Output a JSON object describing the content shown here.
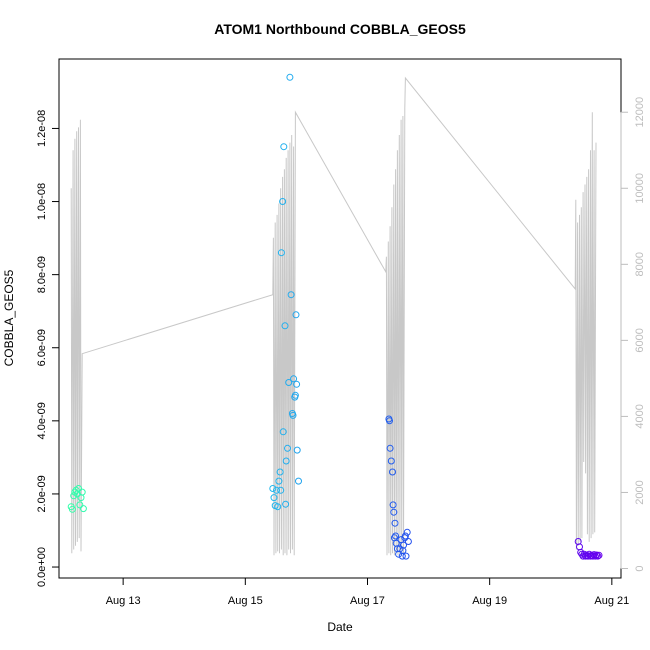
{
  "chart_data": {
    "type": "scatter",
    "title": "ATOM1 Northbound COBBLA_GEOS5",
    "xlabel": "Date",
    "ylabel": "COBBLA_GEOS5",
    "x_ticks": [
      "Aug 13",
      "Aug 15",
      "Aug 17",
      "Aug 19",
      "Aug 21"
    ],
    "x_tick_days": [
      13,
      15,
      17,
      19,
      21
    ],
    "xlim_days": [
      11.95,
      21.15
    ],
    "y_ticks": [
      "0.0e+00",
      "2.0e-09",
      "4.0e-09",
      "6.0e-09",
      "8.0e-09",
      "1.0e-08",
      "1.2e-08"
    ],
    "y_tick_values": [
      0,
      2e-09,
      4e-09,
      6e-09,
      8e-09,
      1e-08,
      1.2e-08
    ],
    "ylim": [
      -3e-10,
      1.39e-08
    ],
    "y2_ticks": [
      "0",
      "2000",
      "4000",
      "6000",
      "8000",
      "10000",
      "12000"
    ],
    "y2_tick_values": [
      0,
      2000,
      4000,
      6000,
      8000,
      10000,
      12000
    ],
    "y2lim": [
      -250,
      13400
    ],
    "secondary_line_color": "#c8c8c8",
    "point_color_scale": [
      "#33ffaa",
      "#22ccee",
      "#2244ee",
      "#6600ee"
    ],
    "points": [
      {
        "x": 12.15,
        "y": 1.65e-09
      },
      {
        "x": 12.17,
        "y": 1.58e-09
      },
      {
        "x": 12.19,
        "y": 1.95e-09
      },
      {
        "x": 12.21,
        "y": 2.05e-09
      },
      {
        "x": 12.23,
        "y": 2.1e-09
      },
      {
        "x": 12.25,
        "y": 2e-09
      },
      {
        "x": 12.27,
        "y": 2.15e-09
      },
      {
        "x": 12.29,
        "y": 1.7e-09
      },
      {
        "x": 12.31,
        "y": 1.9e-09
      },
      {
        "x": 12.33,
        "y": 2.05e-09
      },
      {
        "x": 12.35,
        "y": 1.6e-09
      },
      {
        "x": 15.45,
        "y": 2.15e-09
      },
      {
        "x": 15.47,
        "y": 1.9e-09
      },
      {
        "x": 15.49,
        "y": 1.68e-09
      },
      {
        "x": 15.51,
        "y": 2.1e-09
      },
      {
        "x": 15.53,
        "y": 1.65e-09
      },
      {
        "x": 15.55,
        "y": 2.35e-09
      },
      {
        "x": 15.57,
        "y": 2.6e-09
      },
      {
        "x": 15.59,
        "y": 8.6e-09
      },
      {
        "x": 15.61,
        "y": 1e-08
      },
      {
        "x": 15.63,
        "y": 1.15e-08
      },
      {
        "x": 15.65,
        "y": 6.6e-09
      },
      {
        "x": 15.67,
        "y": 2.9e-09
      },
      {
        "x": 15.69,
        "y": 3.25e-09
      },
      {
        "x": 15.71,
        "y": 5.05e-09
      },
      {
        "x": 15.73,
        "y": 1.34e-08
      },
      {
        "x": 15.75,
        "y": 7.45e-09
      },
      {
        "x": 15.77,
        "y": 4.2e-09
      },
      {
        "x": 15.79,
        "y": 5.15e-09
      },
      {
        "x": 15.81,
        "y": 4.65e-09
      },
      {
        "x": 15.83,
        "y": 6.9e-09
      },
      {
        "x": 15.85,
        "y": 3.2e-09
      },
      {
        "x": 15.87,
        "y": 2.35e-09
      },
      {
        "x": 15.62,
        "y": 3.7e-09
      },
      {
        "x": 15.66,
        "y": 1.72e-09
      },
      {
        "x": 15.78,
        "y": 4.15e-09
      },
      {
        "x": 15.82,
        "y": 4.7e-09
      },
      {
        "x": 15.84,
        "y": 5e-09
      },
      {
        "x": 15.58,
        "y": 2.1e-09
      },
      {
        "x": 17.35,
        "y": 4.05e-09
      },
      {
        "x": 17.37,
        "y": 3.25e-09
      },
      {
        "x": 17.39,
        "y": 2.9e-09
      },
      {
        "x": 17.41,
        "y": 2.6e-09
      },
      {
        "x": 17.42,
        "y": 1.7e-09
      },
      {
        "x": 17.43,
        "y": 1.5e-09
      },
      {
        "x": 17.45,
        "y": 1.2e-09
      },
      {
        "x": 17.46,
        "y": 8.5e-10
      },
      {
        "x": 17.47,
        "y": 6.5e-10
      },
      {
        "x": 17.49,
        "y": 5e-10
      },
      {
        "x": 17.51,
        "y": 3.5e-10
      },
      {
        "x": 17.53,
        "y": 5e-10
      },
      {
        "x": 17.55,
        "y": 7.5e-10
      },
      {
        "x": 17.57,
        "y": 3e-10
      },
      {
        "x": 17.59,
        "y": 6e-10
      },
      {
        "x": 17.61,
        "y": 8e-10
      },
      {
        "x": 17.63,
        "y": 3e-10
      },
      {
        "x": 17.65,
        "y": 9.5e-10
      },
      {
        "x": 17.67,
        "y": 7e-10
      },
      {
        "x": 17.44,
        "y": 8e-10
      },
      {
        "x": 17.36,
        "y": 4e-09
      },
      {
        "x": 17.58,
        "y": 4.5e-10
      },
      {
        "x": 17.62,
        "y": 8.5e-10
      },
      {
        "x": 20.45,
        "y": 7e-10
      },
      {
        "x": 20.47,
        "y": 5.5e-10
      },
      {
        "x": 20.49,
        "y": 4e-10
      },
      {
        "x": 20.51,
        "y": 3.5e-10
      },
      {
        "x": 20.53,
        "y": 3e-10
      },
      {
        "x": 20.55,
        "y": 3.5e-10
      },
      {
        "x": 20.57,
        "y": 3e-10
      },
      {
        "x": 20.59,
        "y": 3.2e-10
      },
      {
        "x": 20.61,
        "y": 3e-10
      },
      {
        "x": 20.63,
        "y": 3.5e-10
      },
      {
        "x": 20.65,
        "y": 3e-10
      },
      {
        "x": 20.67,
        "y": 3.2e-10
      },
      {
        "x": 20.69,
        "y": 3e-10
      },
      {
        "x": 20.71,
        "y": 3.4e-10
      },
      {
        "x": 20.73,
        "y": 3e-10
      },
      {
        "x": 20.75,
        "y": 3.3e-10
      },
      {
        "x": 20.77,
        "y": 3e-10
      },
      {
        "x": 20.79,
        "y": 3.2e-10
      }
    ],
    "secondary_line": [
      [
        12.15,
        10000
      ],
      [
        12.16,
        400
      ],
      [
        12.18,
        11000
      ],
      [
        12.19,
        500
      ],
      [
        12.21,
        11300
      ],
      [
        12.22,
        600
      ],
      [
        12.24,
        11500
      ],
      [
        12.25,
        700
      ],
      [
        12.27,
        11600
      ],
      [
        12.28,
        800
      ],
      [
        12.3,
        11800
      ],
      [
        12.31,
        450
      ],
      [
        12.33,
        5650
      ],
      [
        15.45,
        7200
      ],
      [
        15.46,
        8700
      ],
      [
        15.47,
        350
      ],
      [
        15.49,
        9100
      ],
      [
        15.5,
        400
      ],
      [
        15.52,
        9300
      ],
      [
        15.53,
        450
      ],
      [
        15.55,
        9600
      ],
      [
        15.56,
        400
      ],
      [
        15.58,
        10000
      ],
      [
        15.59,
        500
      ],
      [
        15.61,
        10300
      ],
      [
        15.62,
        350
      ],
      [
        15.64,
        10500
      ],
      [
        15.65,
        400
      ],
      [
        15.67,
        10800
      ],
      [
        15.68,
        350
      ],
      [
        15.7,
        11000
      ],
      [
        15.71,
        500
      ],
      [
        15.73,
        11200
      ],
      [
        15.74,
        400
      ],
      [
        15.76,
        11400
      ],
      [
        15.77,
        500
      ],
      [
        15.79,
        11100
      ],
      [
        15.8,
        350
      ],
      [
        15.82,
        12000
      ],
      [
        17.3,
        7800
      ],
      [
        17.31,
        8200
      ],
      [
        17.32,
        350
      ],
      [
        17.34,
        8600
      ],
      [
        17.35,
        400
      ],
      [
        17.37,
        9000
      ],
      [
        17.38,
        350
      ],
      [
        17.4,
        9500
      ],
      [
        17.41,
        400
      ],
      [
        17.43,
        10100
      ],
      [
        17.44,
        350
      ],
      [
        17.46,
        10500
      ],
      [
        17.47,
        400
      ],
      [
        17.49,
        11000
      ],
      [
        17.5,
        350
      ],
      [
        17.52,
        11400
      ],
      [
        17.53,
        350
      ],
      [
        17.55,
        11800
      ],
      [
        17.56,
        400
      ],
      [
        17.58,
        11900
      ],
      [
        17.59,
        350
      ],
      [
        17.61,
        12100
      ],
      [
        17.62,
        12900
      ],
      [
        20.4,
        7350
      ],
      [
        20.41,
        9700
      ],
      [
        20.42,
        500
      ],
      [
        20.44,
        9100
      ],
      [
        20.45,
        600
      ],
      [
        20.47,
        9300
      ],
      [
        20.48,
        700
      ],
      [
        20.5,
        9500
      ],
      [
        20.51,
        800
      ],
      [
        20.53,
        9900
      ],
      [
        20.54,
        2800
      ],
      [
        20.56,
        10100
      ],
      [
        20.57,
        2500
      ],
      [
        20.59,
        10300
      ],
      [
        20.6,
        900
      ],
      [
        20.62,
        10500
      ],
      [
        20.63,
        700
      ],
      [
        20.65,
        11000
      ],
      [
        20.66,
        800
      ],
      [
        20.68,
        12000
      ],
      [
        20.69,
        900
      ],
      [
        20.71,
        11000
      ],
      [
        20.72,
        950
      ],
      [
        20.74,
        11200
      ]
    ]
  }
}
